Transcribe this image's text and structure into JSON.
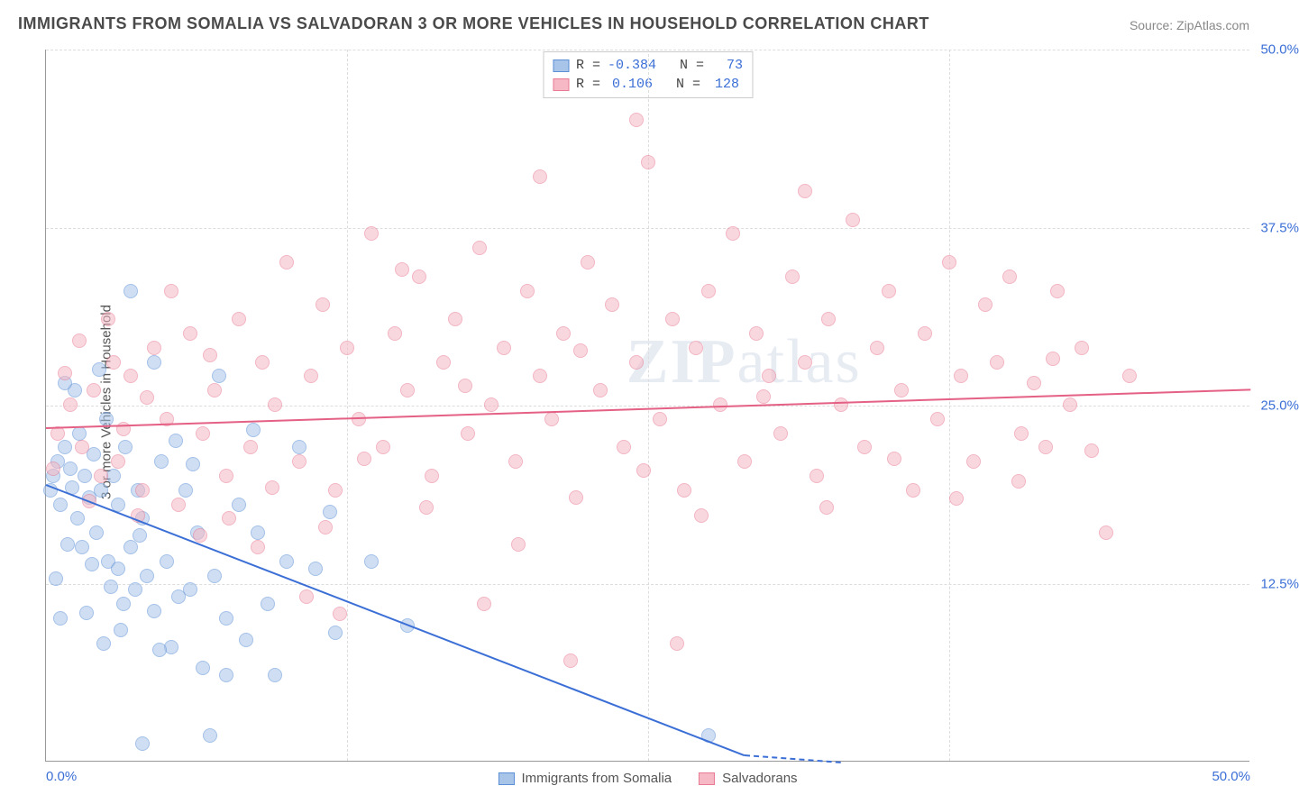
{
  "title": "IMMIGRANTS FROM SOMALIA VS SALVADORAN 3 OR MORE VEHICLES IN HOUSEHOLD CORRELATION CHART",
  "source": "Source: ZipAtlas.com",
  "yaxis_label": "3 or more Vehicles in Household",
  "watermark": "ZIPatlas",
  "chart": {
    "type": "scatter",
    "xlim": [
      0,
      50
    ],
    "ylim": [
      0,
      50
    ],
    "xticks": [
      0,
      50
    ],
    "xtick_labels": [
      "0.0%",
      "50.0%"
    ],
    "yticks": [
      12.5,
      25,
      37.5,
      50
    ],
    "ytick_labels": [
      "12.5%",
      "25.0%",
      "37.5%",
      "50.0%"
    ],
    "x_gridlines": [
      12.5,
      25,
      37.5
    ],
    "background_color": "#ffffff",
    "grid_color": "#dddddd",
    "axis_color": "#999999",
    "tick_color": "#3b6fd6",
    "point_radius": 8,
    "point_opacity": 0.55,
    "series": [
      {
        "name": "Immigrants from Somalia",
        "fill": "#a8c4e8",
        "stroke": "#5b8fd6",
        "stroke_solid": "#3b6fd6",
        "R": "-0.384",
        "N": "73",
        "trend": {
          "x1": 0,
          "y1": 19.5,
          "x2": 29,
          "y2": 0.5,
          "dash_after_x": 29,
          "x2_dash_end": 33
        },
        "points": [
          [
            0.2,
            19
          ],
          [
            0.3,
            20
          ],
          [
            0.5,
            21
          ],
          [
            0.6,
            18
          ],
          [
            0.8,
            22
          ],
          [
            1.0,
            20.5
          ],
          [
            1.1,
            19.2
          ],
          [
            1.3,
            17
          ],
          [
            1.4,
            23
          ],
          [
            1.5,
            15
          ],
          [
            1.6,
            20
          ],
          [
            1.8,
            18.5
          ],
          [
            2.0,
            21.5
          ],
          [
            2.1,
            16
          ],
          [
            2.3,
            19
          ],
          [
            2.5,
            24
          ],
          [
            2.6,
            14
          ],
          [
            2.8,
            20
          ],
          [
            3.0,
            13.5
          ],
          [
            3.0,
            18
          ],
          [
            3.2,
            11
          ],
          [
            3.3,
            22
          ],
          [
            3.5,
            15
          ],
          [
            3.7,
            12
          ],
          [
            3.8,
            19
          ],
          [
            4.0,
            17
          ],
          [
            4.2,
            13
          ],
          [
            4.5,
            10.5
          ],
          [
            4.8,
            21
          ],
          [
            5.0,
            14
          ],
          [
            5.2,
            8
          ],
          [
            5.5,
            11.5
          ],
          [
            5.8,
            19
          ],
          [
            6.0,
            12
          ],
          [
            6.3,
            16
          ],
          [
            6.5,
            6.5
          ],
          [
            7.0,
            13
          ],
          [
            7.2,
            27
          ],
          [
            7.5,
            10
          ],
          [
            8.0,
            18
          ],
          [
            8.3,
            8.5
          ],
          [
            8.8,
            16
          ],
          [
            9.2,
            11
          ],
          [
            9.5,
            6
          ],
          [
            10.0,
            14
          ],
          [
            10.5,
            22
          ],
          [
            11.2,
            13.5
          ],
          [
            12.0,
            9
          ],
          [
            13.5,
            14
          ],
          [
            15.0,
            9.5
          ],
          [
            3.5,
            33
          ],
          [
            1.2,
            26
          ],
          [
            0.8,
            26.5
          ],
          [
            2.2,
            27.5
          ],
          [
            4.5,
            28
          ],
          [
            4.0,
            1.2
          ],
          [
            6.8,
            1.8
          ],
          [
            7.5,
            6.0
          ],
          [
            2.7,
            12.2
          ],
          [
            1.9,
            13.8
          ],
          [
            0.9,
            15.2
          ],
          [
            3.9,
            15.8
          ],
          [
            5.4,
            22.5
          ],
          [
            6.1,
            20.8
          ],
          [
            8.6,
            23.2
          ],
          [
            27.5,
            1.8
          ],
          [
            11.8,
            17.5
          ],
          [
            4.7,
            7.8
          ],
          [
            3.1,
            9.2
          ],
          [
            1.7,
            10.4
          ],
          [
            2.4,
            8.2
          ],
          [
            0.4,
            12.8
          ],
          [
            0.6,
            10.0
          ]
        ]
      },
      {
        "name": "Salvadorans",
        "fill": "#f5b8c4",
        "stroke": "#e87a94",
        "stroke_solid": "#e46084",
        "R": "0.106",
        "N": "128",
        "trend": {
          "x1": 0,
          "y1": 23.5,
          "x2": 50,
          "y2": 26.2
        },
        "points": [
          [
            0.5,
            23
          ],
          [
            1.0,
            25
          ],
          [
            1.5,
            22
          ],
          [
            2.0,
            26
          ],
          [
            2.3,
            20
          ],
          [
            2.8,
            28
          ],
          [
            3.0,
            21
          ],
          [
            3.5,
            27
          ],
          [
            4.0,
            19
          ],
          [
            4.5,
            29
          ],
          [
            5.0,
            24
          ],
          [
            5.5,
            18
          ],
          [
            6.0,
            30
          ],
          [
            6.5,
            23
          ],
          [
            7.0,
            26
          ],
          [
            7.5,
            20
          ],
          [
            8.0,
            31
          ],
          [
            8.5,
            22
          ],
          [
            9.0,
            28
          ],
          [
            9.5,
            25
          ],
          [
            10.0,
            35
          ],
          [
            10.5,
            21
          ],
          [
            11.0,
            27
          ],
          [
            11.5,
            32
          ],
          [
            12.0,
            19
          ],
          [
            12.5,
            29
          ],
          [
            13.0,
            24
          ],
          [
            13.5,
            37
          ],
          [
            14.0,
            22
          ],
          [
            14.5,
            30
          ],
          [
            15.0,
            26
          ],
          [
            15.5,
            34
          ],
          [
            16.0,
            20
          ],
          [
            16.5,
            28
          ],
          [
            17.0,
            31
          ],
          [
            17.5,
            23
          ],
          [
            18.0,
            36
          ],
          [
            18.5,
            25
          ],
          [
            19.0,
            29
          ],
          [
            19.5,
            21
          ],
          [
            20.0,
            33
          ],
          [
            20.5,
            27
          ],
          [
            20.5,
            41
          ],
          [
            21.0,
            24
          ],
          [
            21.5,
            30
          ],
          [
            22.0,
            18.5
          ],
          [
            22.5,
            35
          ],
          [
            23.0,
            26
          ],
          [
            23.5,
            32
          ],
          [
            24.0,
            22
          ],
          [
            24.5,
            28
          ],
          [
            25.0,
            42
          ],
          [
            25.5,
            24
          ],
          [
            26.0,
            31
          ],
          [
            26.5,
            19
          ],
          [
            27.0,
            29
          ],
          [
            27.5,
            33
          ],
          [
            28.0,
            25
          ],
          [
            28.5,
            37
          ],
          [
            29.0,
            21
          ],
          [
            29.5,
            30
          ],
          [
            30.0,
            27
          ],
          [
            30.5,
            23
          ],
          [
            31.0,
            34
          ],
          [
            31.5,
            28
          ],
          [
            32.0,
            20
          ],
          [
            32.5,
            31
          ],
          [
            33.0,
            25
          ],
          [
            33.5,
            38
          ],
          [
            34.0,
            22
          ],
          [
            34.5,
            29
          ],
          [
            35.0,
            33
          ],
          [
            35.5,
            26
          ],
          [
            36.0,
            19
          ],
          [
            36.5,
            30
          ],
          [
            37.0,
            24
          ],
          [
            37.5,
            35
          ],
          [
            38.0,
            27
          ],
          [
            38.5,
            21
          ],
          [
            39.0,
            32
          ],
          [
            39.5,
            28
          ],
          [
            40.0,
            34
          ],
          [
            40.5,
            23
          ],
          [
            41.0,
            26.5
          ],
          [
            41.5,
            22
          ],
          [
            42.0,
            33
          ],
          [
            42.5,
            25
          ],
          [
            43.0,
            29
          ],
          [
            44.0,
            16
          ],
          [
            45.0,
            27
          ],
          [
            24.5,
            45
          ],
          [
            31.5,
            40
          ],
          [
            18.2,
            11
          ],
          [
            21.8,
            7
          ],
          [
            26.2,
            8.2
          ],
          [
            10.8,
            11.5
          ],
          [
            12.2,
            10.3
          ],
          [
            14.8,
            34.5
          ],
          [
            0.8,
            27.2
          ],
          [
            1.4,
            29.5
          ],
          [
            2.6,
            31
          ],
          [
            3.8,
            17.2
          ],
          [
            5.2,
            33
          ],
          [
            6.4,
            15.8
          ],
          [
            7.6,
            17
          ],
          [
            8.8,
            15
          ],
          [
            4.2,
            25.5
          ],
          [
            0.3,
            20.5
          ],
          [
            1.8,
            18.2
          ],
          [
            3.2,
            23.3
          ],
          [
            6.8,
            28.5
          ],
          [
            9.4,
            19.2
          ],
          [
            11.6,
            16.4
          ],
          [
            13.2,
            21.2
          ],
          [
            15.8,
            17.8
          ],
          [
            17.4,
            26.3
          ],
          [
            19.6,
            15.2
          ],
          [
            22.2,
            28.8
          ],
          [
            24.8,
            20.4
          ],
          [
            27.2,
            17.2
          ],
          [
            29.8,
            25.6
          ],
          [
            32.4,
            17.8
          ],
          [
            35.2,
            21.2
          ],
          [
            37.8,
            18.4
          ],
          [
            40.4,
            19.6
          ],
          [
            43.4,
            21.8
          ],
          [
            41.8,
            28.2
          ]
        ]
      }
    ]
  },
  "legend_bottom": [
    {
      "label": "Immigrants from Somalia",
      "fill": "#a8c4e8",
      "stroke": "#5b8fd6"
    },
    {
      "label": "Salvadorans",
      "fill": "#f5b8c4",
      "stroke": "#e87a94"
    }
  ]
}
